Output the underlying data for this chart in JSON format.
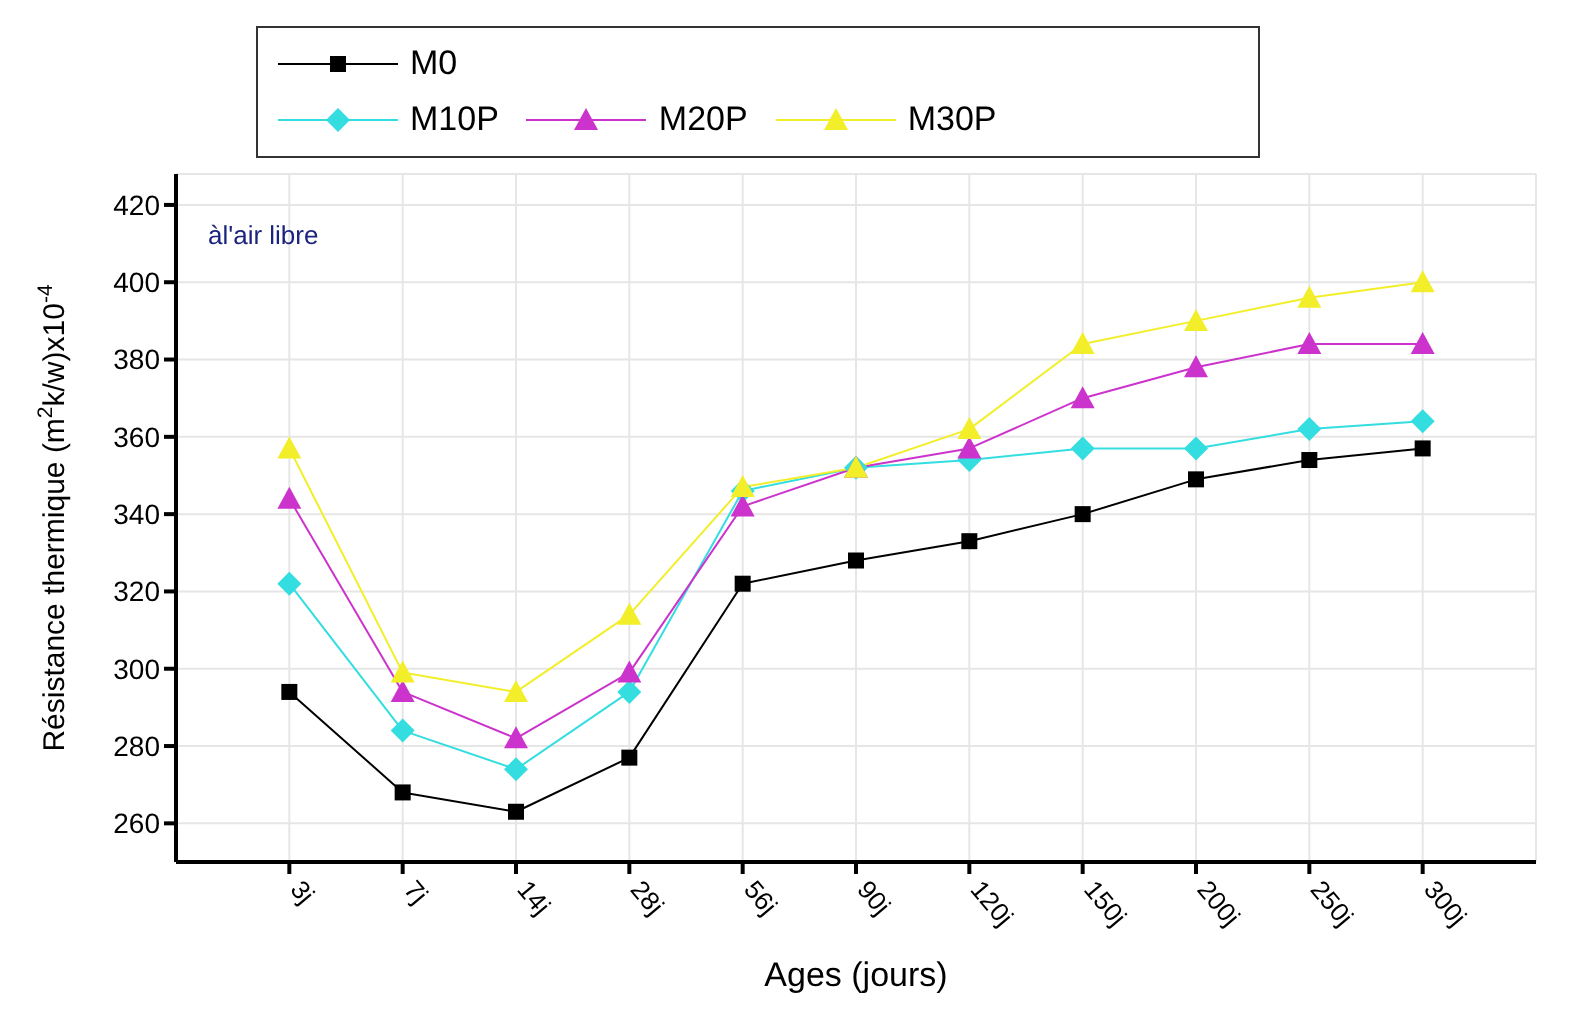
{
  "chart_data": {
    "type": "line",
    "xlabel": "Ages (jours)",
    "ylabel": "Résistance thermique (m$^{2}$k/w)x10$^{-4}$",
    "annotations": [
      "àl'air libre"
    ],
    "categories": [
      "3j",
      "7j",
      "14j",
      "28j",
      "56j",
      "90j",
      "120j",
      "150j",
      "200j",
      "250j",
      "300j"
    ],
    "series": [
      {
        "name": "M0",
        "color": "#000000",
        "marker": "square",
        "values": [
          294,
          268,
          263,
          277,
          322,
          328,
          333,
          340,
          349,
          354,
          357
        ]
      },
      {
        "name": "M10P",
        "color": "#33dde0",
        "marker": "diamond",
        "values": [
          322,
          284,
          274,
          294,
          346,
          352,
          354,
          357,
          357,
          362,
          364
        ]
      },
      {
        "name": "M20P",
        "color": "#cc33cc",
        "marker": "triangle",
        "values": [
          344,
          294,
          282,
          299,
          342,
          352,
          357,
          370,
          378,
          384,
          384
        ]
      },
      {
        "name": "M30P",
        "color": "#f2ee2a",
        "marker": "triangle",
        "values": [
          357,
          299,
          294,
          314,
          347,
          352,
          362,
          384,
          390,
          396,
          400
        ]
      }
    ],
    "ylim": [
      250,
      428
    ],
    "yticks": [
      260,
      280,
      300,
      320,
      340,
      360,
      380,
      400,
      420
    ],
    "grid": true,
    "legend": "top",
    "line_style": "solid"
  }
}
